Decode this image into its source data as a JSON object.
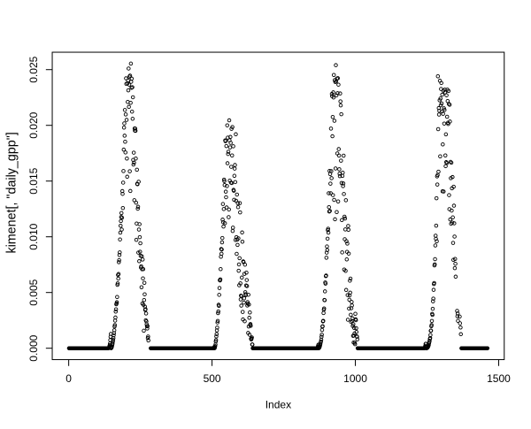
{
  "figure": {
    "background": "#ffffff",
    "foreground": "#000000"
  },
  "chart_data": {
    "type": "scatter",
    "title": "",
    "xlabel": "Index",
    "ylabel": "kimenet[, \"daily_gpp\"]",
    "marker": "open-circle",
    "grid": "off",
    "legend": "none",
    "x_start": 1,
    "n_points": 1461,
    "x_axis": {
      "ticks": [
        0,
        500,
        1000,
        1500
      ],
      "tick_labels": [
        "0",
        "500",
        "1000",
        "1500"
      ]
    },
    "y_axis": {
      "ticks": [
        0,
        0.005,
        0.01,
        0.015,
        0.02,
        0.025
      ],
      "tick_labels": [
        "0.000",
        "0.005",
        "0.010",
        "0.015",
        "0.020",
        "0.025"
      ]
    },
    "x_range": [
      1,
      1461
    ],
    "y_range": [
      0.0,
      0.02554
    ],
    "axis_padding_fraction": 0.04,
    "y": [
      0.0,
      0.0,
      0.0,
      0.0,
      0.0,
      0.0,
      0.0,
      0.0,
      0.0,
      0.0,
      0.0,
      0.0,
      0.0,
      0.0,
      0.0,
      0.0,
      0.0,
      0.0,
      0.0,
      0.0,
      0.0,
      0.0,
      0.0,
      0.0,
      0.0,
      0.0,
      0.0,
      0.0,
      0.0,
      0.0,
      0.0,
      0.0,
      0.0,
      0.0,
      0.0,
      0.0,
      0.0,
      0.0,
      0.0,
      0.0,
      0.0,
      0.0,
      0.0,
      0.0,
      0.0,
      0.0,
      0.0,
      0.0,
      0.0,
      0.0,
      0.0,
      0.0,
      0.0,
      0.0,
      0.0,
      0.0,
      0.0,
      0.0,
      0.0,
      0.0,
      0.0,
      0.0,
      0.0,
      0.0,
      0.0,
      0.0,
      0.0,
      0.0,
      0.0,
      0.0,
      0.0,
      0.0,
      0.0,
      0.0,
      0.0,
      0.0,
      0.0,
      0.0,
      0.0,
      0.0,
      0.0,
      0.0,
      0.0,
      0.0,
      0.0,
      0.0,
      0.0,
      0.0,
      0.0,
      0.0,
      0.0,
      0.0,
      0.0,
      0.0,
      0.0,
      0.0,
      0.0,
      0.0,
      0.0,
      0.0,
      0.0,
      0.0,
      0.0,
      0.0,
      0.0,
      0.0,
      0.0,
      0.0,
      0.0,
      0.0,
      0.0,
      0.0,
      0.0,
      0.0,
      0.0,
      0.0,
      0.0,
      0.0,
      0.0,
      0.0,
      0.0,
      0.0,
      0.0,
      0.0,
      0.0,
      0.0,
      0.0,
      0.0,
      0.0,
      0.0,
      0.0,
      0.0,
      0.0,
      0.0,
      0.0,
      0.0,
      0.0,
      0.0,
      0.0,
      3e-05,
      9e-05,
      0.00018,
      0.00027,
      0.00042,
      0.00073,
      0.00103,
      0.00128,
      0.0,
      3e-05,
      9e-05,
      0.00017,
      0.0003,
      0.00041,
      0.00059,
      0.00074,
      0.00091,
      0.00116,
      0.00135,
      0.00161,
      0.00195,
      0.00208,
      0.00248,
      0.00276,
      0.00329,
      0.00349,
      0.00394,
      0.00402,
      0.00413,
      0.0046,
      0.00569,
      0.00582,
      0.00658,
      0.00625,
      0.00666,
      0.00772,
      0.0079,
      0.00837,
      0.0086,
      0.00976,
      0.01037,
      0.01099,
      0.01141,
      0.01177,
      0.01213,
      0.01065,
      0.01171,
      0.0141,
      0.01385,
      0.01258,
      0.01486,
      0.0159,
      0.01782,
      0.0198,
      0.02018,
      0.01907,
      0.02138,
      0.01853,
      0.01757,
      0.02098,
      0.02422,
      0.02372,
      0.02049,
      0.01702,
      0.01539,
      0.02377,
      0.0221,
      0.02402,
      0.02314,
      0.0251,
      0.02166,
      0.02366,
      0.02437,
      0.01588,
      0.02446,
      0.01411,
      0.02202,
      0.02554,
      0.02391,
      0.02337,
      0.02419,
      0.02123,
      0.02342,
      0.02059,
      0.02252,
      0.0169,
      0.01648,
      0.01755,
      0.01665,
      0.01328,
      0.01972,
      0.01953,
      0.01971,
      0.01951,
      0.01702,
      0.01306,
      0.00973,
      0.01119,
      0.01602,
      0.01475,
      0.01472,
      0.01252,
      0.01269,
      0.00858,
      0.01494,
      0.01065,
      0.00781,
      0.01113,
      0.00997,
      0.00866,
      0.00942,
      0.0083,
      0.00724,
      0.00735,
      0.00547,
      0.00825,
      0.00709,
      0.00401,
      0.00796,
      0.00627,
      0.0071,
      0.00389,
      0.00157,
      0.00432,
      0.00587,
      0.00484,
      0.00373,
      0.00344,
      0.0035,
      0.00251,
      0.00312,
      0.00241,
      0.00215,
      0.00197,
      0.00177,
      0.00199,
      0.00091,
      0.00105,
      0.0007,
      null,
      null,
      null,
      null,
      null,
      null,
      null,
      0.0,
      0.0,
      0.0,
      0.0,
      0.0,
      0.0,
      0.0,
      0.0,
      0.0,
      0.0,
      0.0,
      0.0,
      0.0,
      0.0,
      0.0,
      0.0,
      0.0,
      0.0,
      0.0,
      0.0,
      0.0,
      0.0,
      0.0,
      0.0,
      0.0,
      0.0,
      0.0,
      0.0,
      0.0,
      0.0,
      0.0,
      0.0,
      0.0,
      0.0,
      0.0,
      0.0,
      0.0,
      0.0,
      0.0,
      0.0,
      0.0,
      0.0,
      0.0,
      0.0,
      0.0,
      0.0,
      0.0,
      0.0,
      0.0,
      0.0,
      0.0,
      0.0,
      0.0,
      0.0,
      0.0,
      0.0,
      0.0,
      0.0,
      0.0,
      0.0,
      0.0,
      0.0,
      0.0,
      0.0,
      0.0,
      0.0,
      0.0,
      0.0,
      0.0,
      0.0,
      0.0,
      0.0,
      0.0,
      0.0,
      0.0,
      0.0,
      0.0,
      0.0,
      0.0,
      0.0,
      0.0,
      0.0,
      0.0,
      0.0,
      0.0,
      0.0,
      0.0,
      0.0,
      0.0,
      0.0,
      0.0,
      0.0,
      0.0,
      0.0,
      0.0,
      0.0,
      0.0,
      0.0,
      0.0,
      0.0,
      0.0,
      0.0,
      0.0,
      0.0,
      0.0,
      0.0,
      0.0,
      0.0,
      0.0,
      0.0,
      0.0,
      0.0,
      0.0,
      0.0,
      0.0,
      0.0,
      0.0,
      0.0,
      0.0,
      0.0,
      0.0,
      0.0,
      0.0,
      0.0,
      0.0,
      0.0,
      0.0,
      0.0,
      0.0,
      0.0,
      0.0,
      0.0,
      0.0,
      0.0,
      0.0,
      0.0,
      0.0,
      0.0,
      0.0,
      0.0,
      0.0,
      0.0,
      0.0,
      0.0,
      0.0,
      0.0,
      0.0,
      0.0,
      0.0,
      0.0,
      0.0,
      0.0,
      0.0,
      0.0,
      0.0,
      0.0,
      0.0,
      0.0,
      0.0,
      0.0,
      0.0,
      0.0,
      0.0,
      0.0,
      0.0,
      0.0,
      0.0,
      0.0,
      0.0,
      0.0,
      0.0,
      0.0,
      0.0,
      0.0,
      0.0,
      0.0,
      0.0,
      0.0,
      0.0,
      0.0,
      0.0,
      0.0,
      0.0,
      0.0,
      0.0,
      0.0,
      0.0,
      0.0,
      0.0,
      0.0,
      0.0,
      0.0,
      0.0,
      0.0,
      0.0,
      0.0,
      0.0,
      0.0,
      0.0,
      0.0,
      0.0,
      0.0,
      0.0,
      0.0,
      0.0,
      0.0,
      0.0,
      0.0,
      0.0,
      0.0,
      0.0,
      0.0,
      0.0,
      0.0,
      0.0,
      0.0,
      0.0,
      0.0,
      0.0,
      0.0,
      0.0,
      4e-05,
      0.00012,
      0.0,
      7e-05,
      0.00018,
      0.00033,
      0.0006,
      0.00073,
      0.00106,
      0.00127,
      0.0016,
      0.00185,
      0.00231,
      0.00245,
      0.00315,
      0.0033,
      0.0039,
      0.0038,
      0.00479,
      0.0054,
      0.0061,
      0.00608,
      0.00618,
      0.0071,
      0.00821,
      0.0089,
      0.00848,
      0.00886,
      0.0095,
      0.00989,
      0.01154,
      0.01294,
      0.01131,
      0.01092,
      0.01249,
      0.01513,
      0.015,
      0.01464,
      0.01122,
      0.01865,
      0.01858,
      0.01405,
      0.01355,
      0.01814,
      0.01263,
      0.01455,
      0.02,
      0.0166,
      0.0189,
      0.01743,
      0.01763,
      0.01176,
      0.01245,
      0.02045,
      0.01866,
      0.01504,
      0.01802,
      0.01896,
      0.01843,
      0.01486,
      0.01628,
      0.01969,
      0.01482,
      0.0173,
      0.01985,
      0.01052,
      0.01082,
      0.01812,
      0.01421,
      0.01413,
      0.01332,
      0.01547,
      0.01612,
      0.01644,
      0.01491,
      0.00972,
      0.0192,
      0.01323,
      0.00997,
      0.00847,
      0.01379,
      0.00975,
      0.00927,
      0.01302,
      0.01266,
      0.00986,
      0.00695,
      0.00752,
      0.00565,
      0.00808,
      0.01302,
      0.01219,
      0.00582,
      0.00438,
      0.00472,
      0.00382,
      0.00468,
      0.00634,
      0.01039,
      0.00956,
      0.00326,
      0.00258,
      0.00779,
      0.00773,
      0.00409,
      0.00448,
      0.00667,
      0.00242,
      0.0075,
      0.00503,
      0.00485,
      0.00476,
      0.00563,
      0.00678,
      0.00612,
      0.00558,
      0.00383,
      0.00414,
      0.00399,
      0.00137,
      0.0048,
      0.00195,
      0.00392,
      0.00273,
      0.00121,
      0.00321,
      0.00209,
      0.00217,
      0.00201,
      0.00085,
      0.00079,
      0.00088,
      0.00097,
      0.00034,
      0.00033,
      0.0,
      0.0,
      0.0,
      0.0,
      0.0,
      0.0,
      0.0,
      0.0,
      0.0,
      0.0,
      0.0,
      0.0,
      0.0,
      0.0,
      0.0,
      0.0,
      0.0,
      0.0,
      0.0,
      0.0,
      0.0,
      0.0,
      0.0,
      0.0,
      0.0,
      0.0,
      0.0,
      0.0,
      0.0,
      0.0,
      0.0,
      0.0,
      0.0,
      0.0,
      0.0,
      0.0,
      0.0,
      0.0,
      0.0,
      0.0,
      0.0,
      0.0,
      0.0,
      0.0,
      0.0,
      0.0,
      0.0,
      0.0,
      0.0,
      0.0,
      0.0,
      0.0,
      0.0,
      0.0,
      0.0,
      0.0,
      0.0,
      0.0,
      0.0,
      0.0,
      0.0,
      0.0,
      0.0,
      0.0,
      0.0,
      0.0,
      0.0,
      0.0,
      0.0,
      0.0,
      0.0,
      0.0,
      0.0,
      0.0,
      0.0,
      0.0,
      0.0,
      0.0,
      0.0,
      0.0,
      0.0,
      0.0,
      0.0,
      0.0,
      0.0,
      0.0,
      0.0,
      0.0,
      0.0,
      0.0,
      0.0,
      0.0,
      0.0,
      0.0,
      0.0,
      0.0,
      0.0,
      0.0,
      0.0,
      0.0,
      0.0,
      0.0,
      0.0,
      0.0,
      0.0,
      0.0,
      0.0,
      0.0,
      0.0,
      0.0,
      0.0,
      0.0,
      0.0,
      0.0,
      0.0,
      0.0,
      0.0,
      0.0,
      0.0,
      0.0,
      0.0,
      0.0,
      0.0,
      0.0,
      0.0,
      0.0,
      0.0,
      0.0,
      0.0,
      0.0,
      0.0,
      0.0,
      0.0,
      0.0,
      0.0,
      0.0,
      0.0,
      0.0,
      0.0,
      0.0,
      0.0,
      0.0,
      0.0,
      0.0,
      0.0,
      0.0,
      0.0,
      0.0,
      0.0,
      0.0,
      0.0,
      0.0,
      0.0,
      0.0,
      0.0,
      0.0,
      0.0,
      0.0,
      0.0,
      0.0,
      0.0,
      0.0,
      0.0,
      0.0,
      0.0,
      0.0,
      0.0,
      0.0,
      0.0,
      0.0,
      0.0,
      0.0,
      0.0,
      0.0,
      0.0,
      0.0,
      0.0,
      0.0,
      0.0,
      0.0,
      0.0,
      0.0,
      0.0,
      0.0,
      0.0,
      0.0,
      0.0,
      0.0,
      0.0,
      0.0,
      0.0,
      0.0,
      0.0,
      0.0,
      0.0,
      0.0,
      0.0,
      0.0,
      0.0,
      0.0,
      0.0,
      0.0,
      0.0,
      0.0,
      0.0,
      0.0,
      0.0,
      0.0,
      0.0,
      0.0,
      0.0,
      0.0,
      0.0,
      0.0,
      0.0,
      0.0,
      0.0,
      0.0,
      0.0,
      0.0,
      0.0,
      0.0,
      0.0,
      0.0,
      0.0,
      0.0,
      3e-05,
      0.00012,
      0.00023,
      0.00032,
      0.0,
      1e-05,
      4e-05,
      9e-05,
      0.00017,
      0.00026,
      0.00038,
      0.00052,
      0.00061,
      0.00077,
      0.00103,
      0.00122,
      0.00164,
      0.00195,
      0.00197,
      0.00241,
      0.00246,
      0.00316,
      0.00346,
      0.00357,
      0.00433,
      0.00431,
      0.0051,
      0.0059,
      0.0058,
      0.00647,
      0.00652,
      0.00812,
      0.00858,
      0.00913,
      0.00881,
      0.00983,
      0.0106,
      0.01072,
      0.01037,
      0.01391,
      0.01266,
      0.01227,
      0.01591,
      0.01232,
      0.01563,
      0.01477,
      0.01391,
      0.01971,
      0.01589,
      0.01526,
      0.02282,
      0.02262,
      0.01902,
      0.02075,
      0.01374,
      0.02296,
      0.0225,
      0.02452,
      0.01331,
      0.02041,
      0.02405,
      0.01157,
      0.02389,
      0.01613,
      0.0254,
      0.02394,
      0.02269,
      0.01222,
      0.0242,
      0.01748,
      0.02288,
      0.02423,
      0.01317,
      0.02365,
      0.01787,
      0.01729,
      0.01606,
      0.01566,
      0.01544,
      0.02286,
      0.02215,
      0.02179,
      0.01683,
      0.021,
      0.01483,
      0.0115,
      0.0086,
      0.01546,
      0.01575,
      0.01455,
      0.01479,
      0.01728,
      0.01384,
      0.00706,
      0.0118,
      0.00978,
      0.01164,
      0.01066,
      0.00694,
      0.01328,
      0.00523,
      0.0096,
      0.00797,
      0.00865,
      0.00939,
      0.00477,
      0.00256,
      0.01097,
      0.01063,
      0.00849,
      0.00356,
      0.00435,
      0.00474,
      0.00606,
      0.00499,
      0.00625,
      0.003,
      0.00236,
      0.00359,
      0.00415,
      0.00384,
      0.00245,
      0.00268,
      0.002,
      0.00111,
      0.00216,
      0.00051,
      0.00114,
      0.00182,
      0.00132,
      0.00049,
      0.00036,
      0.00309,
      0.0026,
      0.00252,
      0.0018,
      0.00146,
      0.00107,
      0.00103,
      0.0008,
      0.0,
      0.0,
      0.0,
      0.0,
      0.0,
      0.0,
      0.0,
      0.0,
      0.0,
      0.0,
      0.0,
      0.0,
      0.0,
      0.0,
      0.0,
      0.0,
      0.0,
      0.0,
      0.0,
      0.0,
      0.0,
      0.0,
      0.0,
      0.0,
      0.0,
      0.0,
      0.0,
      0.0,
      0.0,
      0.0,
      0.0,
      0.0,
      0.0,
      0.0,
      0.0,
      0.0,
      0.0,
      0.0,
      0.0,
      0.0,
      0.0,
      0.0,
      0.0,
      0.0,
      0.0,
      0.0,
      0.0,
      0.0,
      0.0,
      0.0,
      0.0,
      0.0,
      0.0,
      0.0,
      0.0,
      0.0,
      0.0,
      0.0,
      0.0,
      0.0,
      0.0,
      0.0,
      0.0,
      0.0,
      0.0,
      0.0,
      0.0,
      0.0,
      0.0,
      0.0,
      0.0,
      0.0,
      0.0,
      0.0,
      0.0,
      0.0,
      0.0,
      0.0,
      0.0,
      0.0,
      0.0,
      0.0,
      0.0,
      0.0,
      0.0,
      0.0,
      0.0,
      0.0,
      0.0,
      0.0,
      0.0,
      0.0,
      0.0,
      0.0,
      0.0,
      0.0,
      0.0,
      0.0,
      0.0,
      0.0,
      0.0,
      0.0,
      0.0,
      0.0,
      0.0,
      0.0,
      0.0,
      0.0,
      0.0,
      0.0,
      0.0,
      0.0,
      0.0,
      0.0,
      0.0,
      0.0,
      0.0,
      0.0,
      0.0,
      0.0,
      0.0,
      0.0,
      0.0,
      0.0,
      0.0,
      0.0,
      0.0,
      0.0,
      0.0,
      0.0,
      0.0,
      0.0,
      0.0,
      0.0,
      0.0,
      0.0,
      0.0,
      0.0,
      0.0,
      0.0,
      0.0,
      0.0,
      0.0,
      0.0,
      0.0,
      0.0,
      0.0,
      0.0,
      0.0,
      0.0,
      0.0,
      0.0,
      0.0,
      0.0,
      0.0,
      0.0,
      0.0,
      0.0,
      0.0,
      0.0,
      0.0,
      0.0,
      0.0,
      0.0,
      0.0,
      0.0,
      0.0,
      0.0,
      0.0,
      0.0,
      0.0,
      0.0,
      0.0,
      0.0,
      0.0,
      0.0,
      0.0,
      0.0,
      0.0,
      0.0,
      0.0,
      0.0,
      0.0,
      0.0,
      0.0,
      0.0,
      0.0,
      0.0,
      0.0,
      0.0,
      0.0,
      0.0,
      0.0,
      0.0,
      0.0,
      0.0,
      0.0,
      0.0,
      0.0,
      0.0,
      0.0,
      0.0,
      0.0,
      0.0,
      0.0,
      0.0,
      0.0,
      0.0,
      0.0,
      0.0,
      0.0,
      0.0,
      0.0,
      0.0,
      0.0,
      0.0,
      0.0,
      0.0,
      0.0,
      0.0,
      0.0,
      0.0,
      0.0,
      0.0,
      0.0,
      0.0,
      0.0,
      0.0,
      0.0,
      0.0,
      0.0,
      0.0,
      0.0,
      0.0,
      4e-05,
      0.00012,
      0.00022,
      0.00039,
      0.0004,
      0.0,
      0.0,
      1e-05,
      2e-05,
      3e-05,
      6e-05,
      0.0001,
      0.00014,
      0.00022,
      0.00028,
      0.00043,
      0.00054,
      0.00066,
      0.00084,
      0.00092,
      0.00119,
      0.00157,
      0.00158,
      0.00198,
      0.00208,
      0.00245,
      0.00308,
      0.00299,
      0.00354,
      0.00421,
      0.00445,
      0.00524,
      0.00576,
      0.00585,
      0.00743,
      0.00753,
      0.00799,
      0.00922,
      0.0101,
      0.00982,
      0.011,
      0.01346,
      0.0096,
      0.01542,
      0.01469,
      0.01554,
      0.0244,
      0.01966,
      0.01584,
      0.02155,
      0.02097,
      0.02131,
      0.02225,
      0.024,
      0.01722,
      0.02241,
      0.0218,
      0.02326,
      0.0238,
      0.02196,
      0.02125,
      0.02275,
      0.01408,
      0.01829,
      0.02104,
      0.02311,
      0.01406,
      0.02153,
      0.02016,
      0.02138,
      0.0232,
      0.02296,
      0.0173,
      0.01634,
      0.01919,
      0.0167,
      0.0227,
      0.01662,
      0.02077,
      0.0232,
      0.02218,
      0.02023,
      0.02012,
      0.02308,
      0.02192,
      0.01374,
      0.01248,
      0.02185,
      0.02034,
      0.01155,
      0.01672,
      0.01526,
      0.01117,
      0.01665,
      0.01235,
      0.01435,
      0.01128,
      0.01536,
      0.01174,
      0.00945,
      0.00793,
      0.01449,
      0.01279,
      0.01121,
      0.01002,
      0.00719,
      0.00801,
      0.00758,
      0.00642,
      null,
      null,
      null,
      null,
      0.00335,
      0.00287,
      0.00312,
      0.00246,
      null,
      null,
      null,
      null,
      null,
      0.00284,
      0.00224,
      null,
      0.00186,
      0.00126,
      null,
      0.0,
      0.0,
      0.0,
      0.0,
      0.0,
      0.0,
      0.0,
      0.0,
      0.0,
      0.0,
      0.0,
      0.0,
      0.0,
      0.0,
      0.0,
      0.0,
      0.0,
      0.0,
      0.0,
      0.0,
      0.0,
      0.0,
      0.0,
      0.0,
      0.0,
      0.0,
      0.0,
      0.0,
      0.0,
      0.0,
      0.0,
      0.0,
      0.0,
      0.0,
      0.0,
      0.0,
      0.0,
      0.0,
      0.0,
      0.0,
      0.0,
      0.0,
      0.0,
      0.0,
      0.0,
      0.0,
      0.0,
      0.0,
      0.0,
      0.0,
      0.0,
      0.0,
      0.0,
      0.0,
      0.0,
      0.0,
      0.0,
      0.0,
      0.0,
      0.0,
      0.0,
      0.0,
      0.0,
      0.0,
      0.0,
      0.0,
      0.0,
      0.0,
      0.0,
      0.0,
      0.0,
      0.0,
      0.0,
      0.0,
      0.0,
      0.0,
      0.0,
      0.0,
      0.0,
      0.0,
      0.0,
      0.0,
      0.0,
      0.0,
      0.0,
      0.0,
      0.0,
      0.0,
      0.0,
      0.0,
      0.0,
      0.0
    ]
  }
}
